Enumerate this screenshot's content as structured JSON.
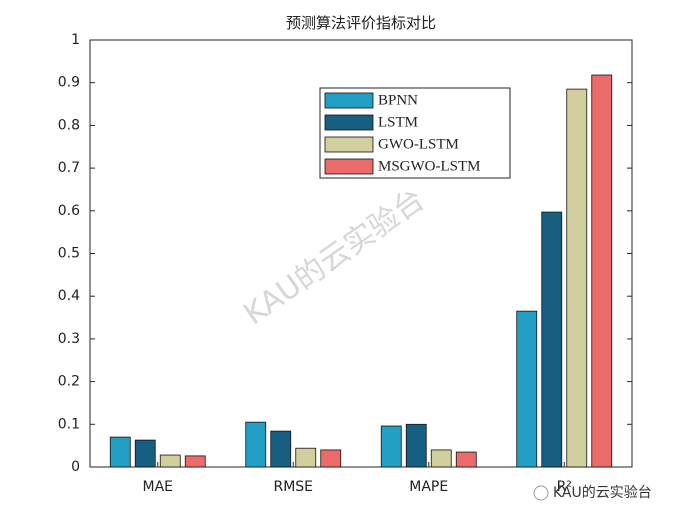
{
  "chart_data": {
    "type": "bar",
    "title": "预测算法评价指标对比",
    "categories": [
      "MAE",
      "RMSE",
      "MAPE",
      "R²"
    ],
    "series": [
      {
        "name": "BPNN",
        "color": "#239ec4",
        "values": [
          0.07,
          0.105,
          0.096,
          0.365
        ]
      },
      {
        "name": "LSTM",
        "color": "#165f80",
        "values": [
          0.063,
          0.084,
          0.1,
          0.597
        ]
      },
      {
        "name": "GWO-LSTM",
        "color": "#d2cf9f",
        "values": [
          0.028,
          0.044,
          0.04,
          0.885
        ]
      },
      {
        "name": "MSGWO-LSTM",
        "color": "#eb6a6a",
        "values": [
          0.026,
          0.04,
          0.035,
          0.918
        ]
      }
    ],
    "ylim": [
      0,
      1
    ],
    "yticks": [
      0,
      0.1,
      0.2,
      0.3,
      0.4,
      0.5,
      0.6,
      0.7,
      0.8,
      0.9,
      1
    ],
    "grid": false,
    "legend_position": "top",
    "annotations": [
      "KAU的云实验台",
      "KAU的云实验台"
    ]
  }
}
